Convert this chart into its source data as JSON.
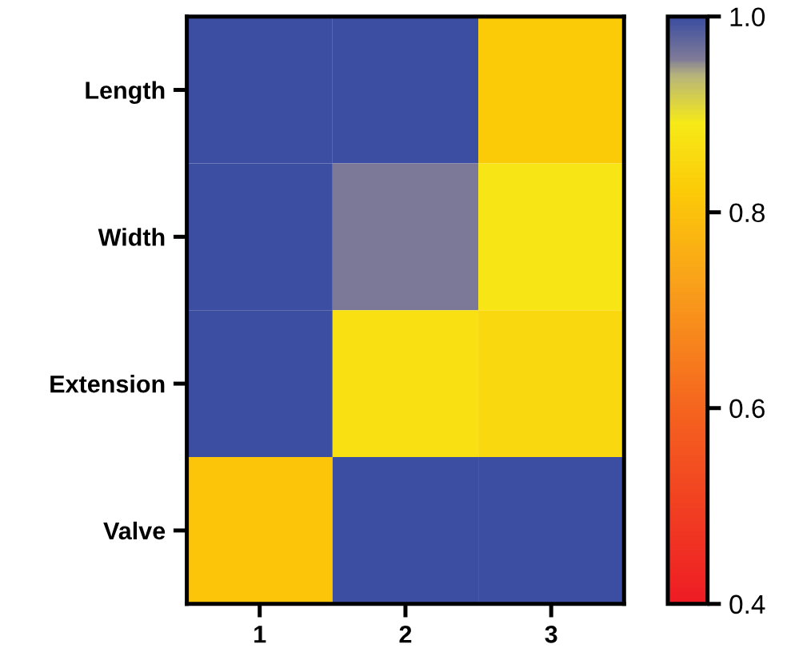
{
  "chart_data": {
    "type": "heatmap",
    "categories": [
      "1",
      "2",
      "3"
    ],
    "y_categories": [
      "Length",
      "Width",
      "Extension",
      "Valve"
    ],
    "cells": [
      [
        1.0,
        1.0,
        0.82
      ],
      [
        1.0,
        0.96,
        0.88
      ],
      [
        1.0,
        0.87,
        0.85
      ],
      [
        0.81,
        1.0,
        1.0
      ]
    ],
    "clim": [
      0.4,
      1.0
    ],
    "cticks": [
      {
        "value": 0.4,
        "label": "0.4"
      },
      {
        "value": 0.6,
        "label": "0.6"
      },
      {
        "value": 0.8,
        "label": "0.8"
      },
      {
        "value": 1.0,
        "label": "1.0"
      }
    ],
    "grid": false
  }
}
